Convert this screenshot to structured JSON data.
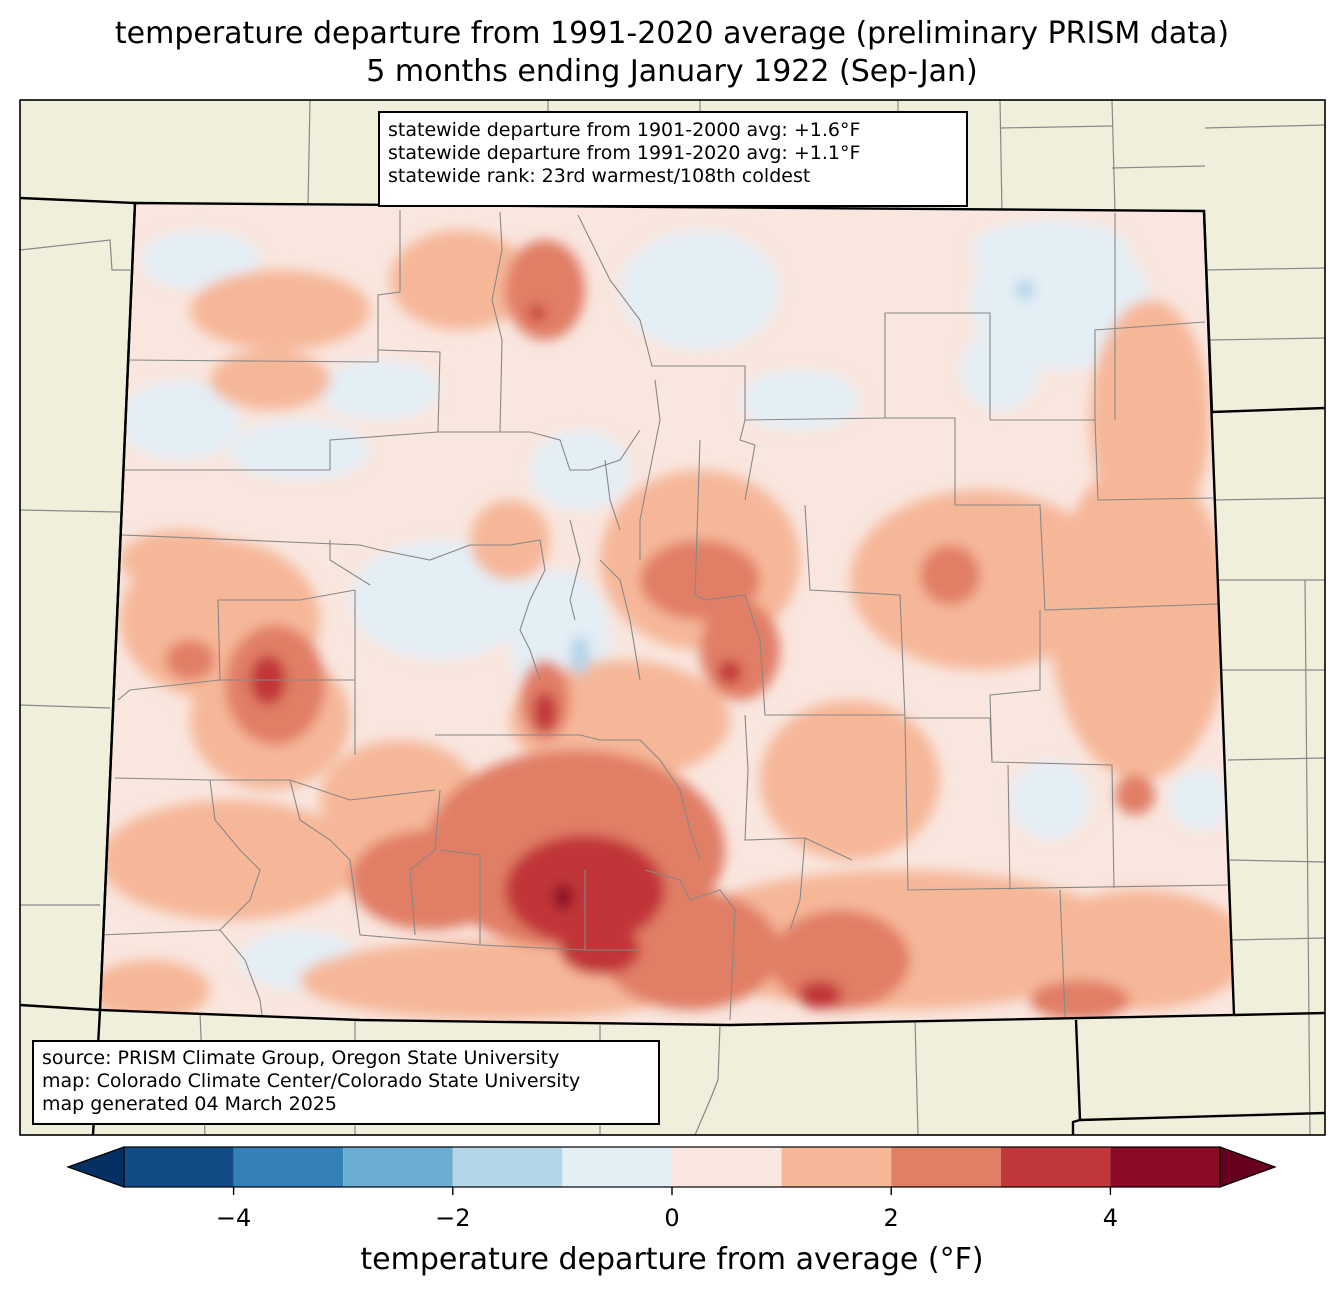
{
  "title": {
    "line1": "temperature departure from 1991-2020 average (preliminary PRISM data)",
    "line2": "5 months ending January 1922 (Sep-Jan)"
  },
  "stats": {
    "line1": "statewide departure from 1901-2000 avg: +1.6°F",
    "line2": "statewide departure from 1991-2020 avg: +1.1°F",
    "line3": "statewide rank: 23rd warmest/108th coldest"
  },
  "source": {
    "line1": "source: PRISM Climate Group, Oregon State University",
    "line2": "map: Colorado Climate Center/Colorado State University",
    "line3": "map generated 04 March 2025"
  },
  "colorbar": {
    "label": "temperature departure from average (°F)",
    "ticks": [
      {
        "value": -4,
        "label": "−4"
      },
      {
        "value": -2,
        "label": "−2"
      },
      {
        "value": 0,
        "label": "0"
      },
      {
        "value": 2,
        "label": "2"
      },
      {
        "value": 4,
        "label": "4"
      }
    ],
    "min": -5,
    "max": 5,
    "under_color": "#053061",
    "over_color": "#67001f",
    "bins": [
      {
        "from": -5,
        "to": -4,
        "color": "#134b87"
      },
      {
        "from": -4,
        "to": -3,
        "color": "#3480b9"
      },
      {
        "from": -3,
        "to": -2,
        "color": "#6bacd1"
      },
      {
        "from": -2,
        "to": -1,
        "color": "#b3d6e8"
      },
      {
        "from": -1,
        "to": 0,
        "color": "#e4eef5"
      },
      {
        "from": 0,
        "to": 1,
        "color": "#f9e6de"
      },
      {
        "from": 1,
        "to": 2,
        "color": "#f6b799"
      },
      {
        "from": 2,
        "to": 3,
        "color": "#e17e66"
      },
      {
        "from": 3,
        "to": 4,
        "color": "#c13639"
      },
      {
        "from": 4,
        "to": 5,
        "color": "#8a0b25"
      }
    ]
  },
  "colors": {
    "background_land": "#f0efdc",
    "county_lines": "#888888",
    "state_lines": "#000000"
  }
}
